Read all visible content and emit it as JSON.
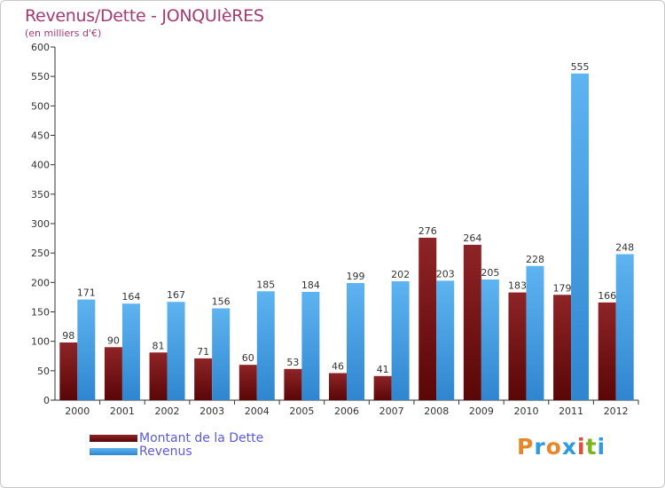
{
  "page": {
    "title": "Revenus/Dette - JONQUIèRES",
    "subtitle": "(en milliers d'€)"
  },
  "legend": {
    "debt_label": "Montant de la Dette",
    "revenue_label": "Revenus"
  },
  "logo": {
    "letters": [
      "P",
      "r",
      "o",
      "x",
      "i",
      "t",
      "i"
    ],
    "colors": [
      "#e8862a",
      "#2e9adf",
      "#e8862a",
      "#2e9adf",
      "#e84a3a",
      "#7ab51d",
      "#2e9adf"
    ]
  },
  "chart_data": {
    "type": "bar",
    "categories": [
      "2000",
      "2001",
      "2002",
      "2003",
      "2004",
      "2005",
      "2006",
      "2007",
      "2008",
      "2009",
      "2010",
      "2011",
      "2012"
    ],
    "series": [
      {
        "name": "Montant de la Dette",
        "color": "#7a1518",
        "values": [
          98,
          90,
          81,
          71,
          60,
          53,
          46,
          41,
          276,
          264,
          183,
          179,
          166
        ]
      },
      {
        "name": "Revenus",
        "color": "#4aa3e6",
        "values": [
          171,
          164,
          167,
          156,
          185,
          184,
          199,
          202,
          203,
          205,
          228,
          555,
          248
        ]
      }
    ],
    "title": "Revenus/Dette - JONQUIèRES",
    "ylabel": "(en milliers d'€)",
    "xlabel": "",
    "ylim": [
      0,
      600
    ],
    "yticks": [
      0,
      50,
      100,
      150,
      200,
      250,
      300,
      350,
      400,
      450,
      500,
      550,
      600
    ],
    "grid": false,
    "legend_position": "bottom-left"
  }
}
